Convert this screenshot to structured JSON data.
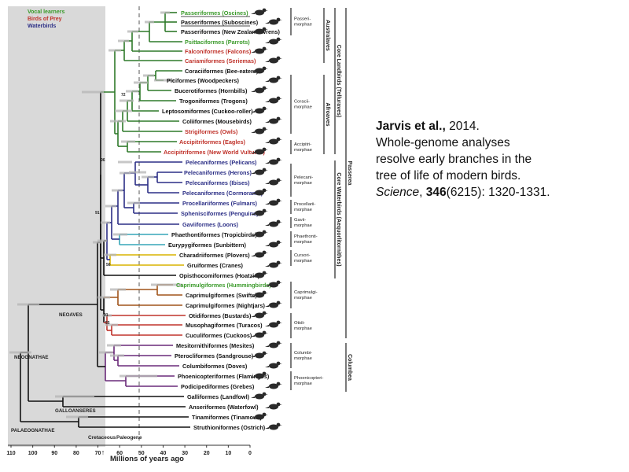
{
  "legend": [
    {
      "label": "Vocal learners",
      "color": "#3a9a2a"
    },
    {
      "label": "Birds of Prey",
      "color": "#c0332b"
    },
    {
      "label": "Waterbirds",
      "color": "#2c2f86"
    }
  ],
  "clade_colors": {
    "Vocal learners": "#3a9a2a",
    "Birds of Prey": "#c0332b",
    "Waterbirds": "#2c2f86",
    "other": "#111111",
    "landbird_branch": "#2f7a2a",
    "waterbird_branch": "#2c2f86",
    "cursorimorph_branch": "#d8b300",
    "phaethontimorph_branch": "#37a6b8",
    "caprimulgimorph_branch": "#a0541a",
    "otidimorph_branch": "#c0332b",
    "columbimorph_branch": "#6a2a7a"
  },
  "taxa": [
    {
      "name": "Passeriformes (Oscines)",
      "color": "#3a9a2a",
      "underline": true
    },
    {
      "name": "Passeriformes (Suboscines)",
      "color": "#111111",
      "underline": true
    },
    {
      "name": "Passeriformes (New Zealand Wrens)",
      "color": "#111111"
    },
    {
      "name": "Psittaciformes (Parrots)",
      "color": "#3a9a2a"
    },
    {
      "name": "Falconiformes (Falcons)",
      "color": "#c0332b"
    },
    {
      "name": "Cariamiformes (Seriemas)",
      "color": "#c0332b"
    },
    {
      "name": "Coraciiformes (Bee-eaters)",
      "color": "#111111"
    },
    {
      "name": "Piciformes (Woodpeckers)",
      "color": "#111111"
    },
    {
      "name": "Bucerotiformes (Hornbills)",
      "color": "#111111"
    },
    {
      "name": "Trogoniformes (Trogons)",
      "color": "#111111"
    },
    {
      "name": "Leptosomiformes (Cuckoo-roller)",
      "color": "#111111"
    },
    {
      "name": "Coliiformes (Mousebirds)",
      "color": "#111111"
    },
    {
      "name": "Strigiformes (Owls)",
      "color": "#c0332b"
    },
    {
      "name": "Accipitriformes (Eagles)",
      "color": "#c0332b"
    },
    {
      "name": "Accipitriformes (New World Vultures)",
      "color": "#c0332b"
    },
    {
      "name": "Pelecaniformes (Pelicans)",
      "color": "#2c2f86"
    },
    {
      "name": "Pelecaniformes (Herons)",
      "color": "#2c2f86"
    },
    {
      "name": "Pelecaniformes (Ibises)",
      "color": "#2c2f86"
    },
    {
      "name": "Pelecaniformes (Cormorants)",
      "color": "#2c2f86"
    },
    {
      "name": "Procellariiformes (Fulmars)",
      "color": "#2c2f86"
    },
    {
      "name": "Sphenisciformes (Penguins)",
      "color": "#2c2f86"
    },
    {
      "name": "Gaviiformes (Loons)",
      "color": "#2c2f86"
    },
    {
      "name": "Phaethontiformes (Tropicbirds)",
      "color": "#111111"
    },
    {
      "name": "Eurypygiformes (Sunbittern)",
      "color": "#111111"
    },
    {
      "name": "Charadriiformes (Plovers)",
      "color": "#111111"
    },
    {
      "name": "Gruiformes (Cranes)",
      "color": "#111111"
    },
    {
      "name": "Opisthocomiformes (Hoatzin)",
      "color": "#111111"
    },
    {
      "name": "Caprimulgiformes (Hummingbirds)",
      "color": "#3a9a2a"
    },
    {
      "name": "Caprimulgiformes (Swifts)",
      "color": "#111111"
    },
    {
      "name": "Caprimulgiformes (Nightjars)",
      "color": "#111111"
    },
    {
      "name": "Otidiformes (Bustards)",
      "color": "#111111"
    },
    {
      "name": "Musophagiformes (Turacos)",
      "color": "#111111"
    },
    {
      "name": "Cuculiformes (Cuckoos)",
      "color": "#111111"
    },
    {
      "name": "Mesitornithiformes (Mesites)",
      "color": "#111111"
    },
    {
      "name": "Pterocliformes (Sandgrouse)",
      "color": "#111111"
    },
    {
      "name": "Columbiformes (Doves)",
      "color": "#111111"
    },
    {
      "name": "Phoenicopteriformes (Flamingos)",
      "color": "#111111"
    },
    {
      "name": "Podicipediformes (Grebes)",
      "color": "#111111"
    },
    {
      "name": "Galliformes (Landfowl)",
      "color": "#111111"
    },
    {
      "name": "Anseriformes (Waterfowl)",
      "color": "#111111"
    },
    {
      "name": "Tinamiformes (Tinamous)",
      "color": "#111111"
    },
    {
      "name": "Struthioniformes (Ostrich)",
      "color": "#111111"
    }
  ],
  "clade_labels": [
    "NEOAVES",
    "NEOGNATHAE",
    "GALLOANSERES",
    "PALAEOGNATHAE"
  ],
  "bootstrap_values": [
    "72",
    "96",
    "91",
    "56",
    "91",
    "55"
  ],
  "morphae": [
    {
      "lines": [
        "Passeri-",
        "morphae"
      ]
    },
    {
      "lines": [
        "Coracii-",
        "morphae"
      ]
    },
    {
      "lines": [
        "Accipitri-",
        "morphae"
      ]
    },
    {
      "lines": [
        "Pelecani-",
        "morphae"
      ]
    },
    {
      "lines": [
        "Procellarii-",
        "morphae"
      ]
    },
    {
      "lines": [
        "Gavii-",
        "morphae"
      ]
    },
    {
      "lines": [
        "Phaethonti-",
        "morphae"
      ]
    },
    {
      "lines": [
        "Cursori-",
        "morphae"
      ]
    },
    {
      "lines": [
        "Caprimulgi-",
        "morphae"
      ]
    },
    {
      "lines": [
        "Otidi-",
        "morphae"
      ]
    },
    {
      "lines": [
        "Columbi-",
        "morphae"
      ]
    },
    {
      "lines": [
        "Phoenicopteri-",
        "morphae"
      ]
    }
  ],
  "higher_groups": [
    "Australaves",
    "Afroaves",
    "Core Landbirds (Telluraves)",
    "Core Waterbirds (Aequorlitornithes)",
    "Passerea",
    "Columbea"
  ],
  "period_labels": {
    "cretaceous": "Cretaceous",
    "paleogene": "Paleogene"
  },
  "axis": {
    "title": "Millions of years ago",
    "ticks": [
      "110",
      "100",
      "90",
      "80",
      "70",
      "60",
      "50",
      "40",
      "30",
      "20",
      "10",
      "0"
    ],
    "range_mya": [
      110,
      0
    ],
    "kpg_boundary_mya": 66,
    "shaded_region_mya": [
      110,
      66
    ]
  },
  "citation": {
    "authors": "Jarvis et al.,",
    "year": " 2014.",
    "title_line1": "Whole-genome analyses",
    "title_line2": "resolve early branches in the",
    "title_line3": "tree of life of modern birds.",
    "journal": "Science",
    "sep": ", ",
    "volume": "346",
    "issue_pages": "(6215): 1320-1331."
  }
}
